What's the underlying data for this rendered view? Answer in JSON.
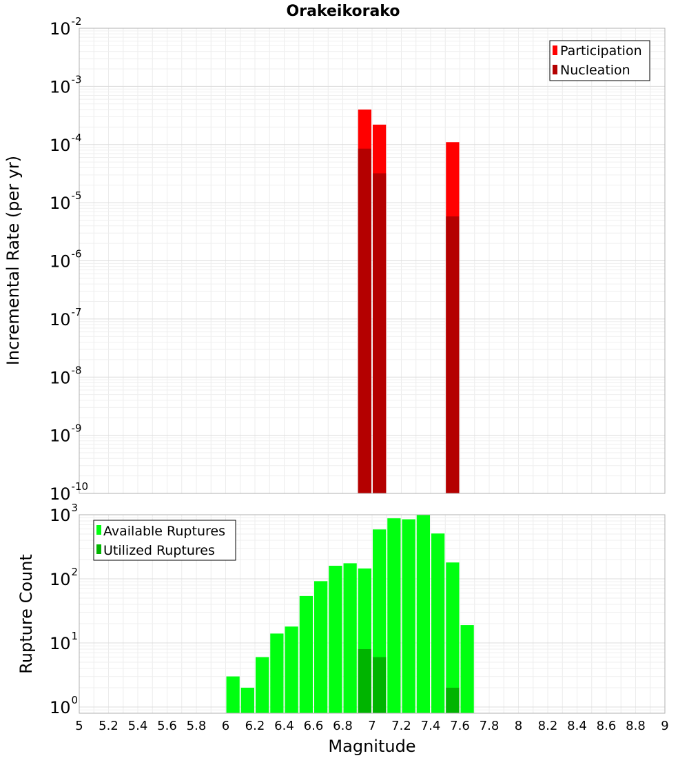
{
  "chart_data": [
    {
      "panel": "top",
      "type": "bar",
      "title": "Orakeikorako",
      "ylabel": "Incremental Rate (per yr)",
      "yscale": "log",
      "ylim": [
        1e-10,
        0.01
      ],
      "ytick_base": "10",
      "ytick_exponents": [
        "-10",
        "-9",
        "-8",
        "-7",
        "-6",
        "-5",
        "-4",
        "-3",
        "-2"
      ],
      "xlim": [
        5,
        9
      ],
      "bar_width": 0.1,
      "grid": true,
      "legend_position": "top-right",
      "series": [
        {
          "name": "Participation",
          "color": "#ff0000",
          "x": [
            6.95,
            7.05,
            7.55
          ],
          "values": [
            0.0004,
            0.00022,
            0.00011
          ]
        },
        {
          "name": "Nucleation",
          "color": "#b40000",
          "x": [
            6.95,
            7.05,
            7.55
          ],
          "values": [
            8.5e-05,
            3.2e-05,
            5.8e-06
          ]
        }
      ]
    },
    {
      "panel": "bottom",
      "type": "bar",
      "xlabel": "Magnitude",
      "ylabel": "Rupture Count",
      "yscale": "log",
      "ylim": [
        0.8,
        1000
      ],
      "ytick_base": "10",
      "ytick_exponents": [
        "0",
        "1",
        "2",
        "3"
      ],
      "xlim": [
        5,
        9
      ],
      "xticks": [
        "5",
        "5.2",
        "5.4",
        "5.6",
        "5.8",
        "6",
        "6.2",
        "6.4",
        "6.6",
        "6.8",
        "7",
        "7.2",
        "7.4",
        "7.6",
        "7.8",
        "8",
        "8.2",
        "8.4",
        "8.6",
        "8.8",
        "9"
      ],
      "bar_width": 0.1,
      "grid": true,
      "legend_position": "top-left",
      "series": [
        {
          "name": "Available Ruptures",
          "color": "#00ff10",
          "x": [
            6.05,
            6.15,
            6.25,
            6.35,
            6.45,
            6.55,
            6.65,
            6.75,
            6.85,
            6.95,
            7.05,
            7.15,
            7.25,
            7.35,
            7.45,
            7.55,
            7.65
          ],
          "values": [
            3,
            2,
            6,
            14,
            18,
            54,
            92,
            160,
            175,
            145,
            590,
            880,
            850,
            1000,
            510,
            180,
            19
          ]
        },
        {
          "name": "Utilized Ruptures",
          "color": "#00b400",
          "x": [
            6.95,
            7.05,
            7.55
          ],
          "values": [
            8,
            6,
            2
          ]
        }
      ]
    }
  ]
}
